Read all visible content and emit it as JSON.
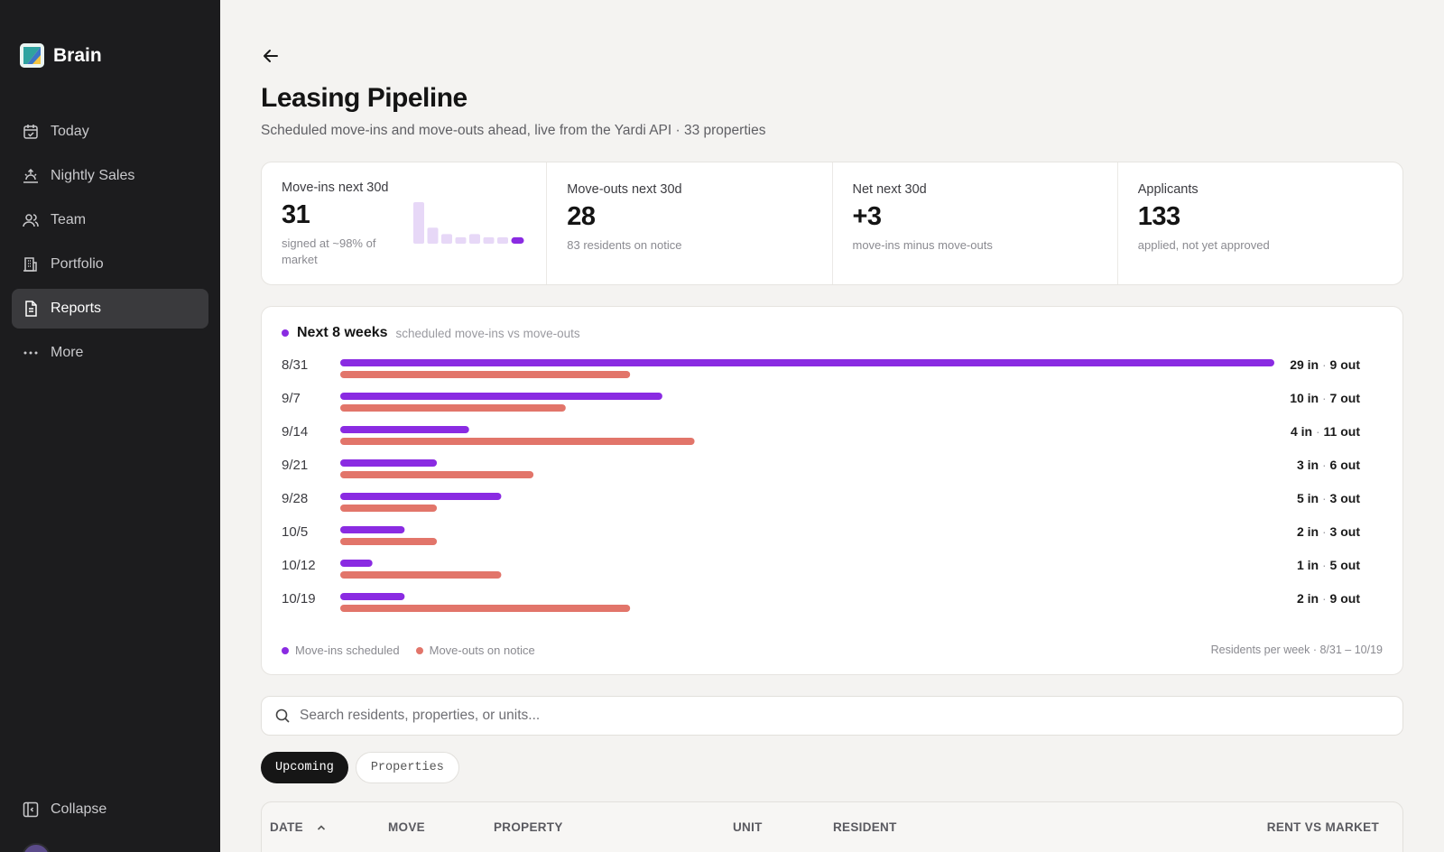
{
  "app": {
    "name": "Brain"
  },
  "sidebar": {
    "items": [
      {
        "label": "Today",
        "icon": "calendar-check-icon"
      },
      {
        "label": "Nightly Sales",
        "icon": "sunrise-icon"
      },
      {
        "label": "Team",
        "icon": "users-icon"
      },
      {
        "label": "Portfolio",
        "icon": "building-icon"
      },
      {
        "label": "Reports",
        "icon": "document-icon",
        "active": true
      },
      {
        "label": "More",
        "icon": "ellipsis-icon"
      }
    ],
    "collapse_label": "Collapse"
  },
  "page": {
    "title": "Leasing Pipeline",
    "subtitle": "Scheduled move-ins and move-outs ahead, live from the Yardi API · 33 properties"
  },
  "kpis": [
    {
      "label": "Move-ins next 30d",
      "value": "31",
      "note": "signed at ~98% of market"
    },
    {
      "label": "Move-outs next 30d",
      "value": "28",
      "note": "83 residents on notice"
    },
    {
      "label": "Net next 30d",
      "value": "+3",
      "note": "move-ins minus move-outs"
    },
    {
      "label": "Applicants",
      "value": "133",
      "note": "applied, not yet approved"
    }
  ],
  "chart_card": {
    "title": "Next 8 weeks",
    "subtitle": "scheduled move-ins vs move-outs",
    "legend_in": "Move-ins scheduled",
    "legend_out": "Move-outs on notice",
    "footer": "Residents per week · 8/31 – 10/19"
  },
  "chart_data": {
    "type": "bar",
    "orientation": "horizontal",
    "categories": [
      "8/31",
      "9/7",
      "9/14",
      "9/21",
      "9/28",
      "10/5",
      "10/12",
      "10/19"
    ],
    "series": [
      {
        "name": "Move-ins scheduled",
        "values": [
          29,
          10,
          4,
          3,
          5,
          2,
          1,
          2
        ],
        "color": "#8a2be2"
      },
      {
        "name": "Move-outs on notice",
        "values": [
          9,
          7,
          11,
          6,
          3,
          3,
          5,
          9
        ],
        "color": "#e2756a"
      }
    ],
    "value_labels": [
      "29 in · 9 out",
      "10 in · 7 out",
      "4 in · 11 out",
      "3 in · 6 out",
      "5 in · 3 out",
      "2 in · 3 out",
      "1 in · 5 out",
      "2 in · 9 out"
    ],
    "xlim": [
      0,
      29
    ]
  },
  "sparkline": {
    "values": [
      13,
      5,
      3,
      2,
      3,
      2,
      2,
      2
    ],
    "highlight_last": true
  },
  "search": {
    "placeholder": "Search residents, properties, or units..."
  },
  "tabs": [
    {
      "label": "Upcoming",
      "active": true
    },
    {
      "label": "Properties",
      "active": false
    }
  ],
  "table": {
    "columns": [
      "DATE",
      "MOVE",
      "PROPERTY",
      "UNIT",
      "RESIDENT",
      "RENT VS MARKET"
    ],
    "sort_icon": "chevron-up-icon"
  },
  "colors": {
    "accent": "#8a2be2",
    "move_out": "#e2756a",
    "sidebar_bg": "#1c1c1e"
  }
}
